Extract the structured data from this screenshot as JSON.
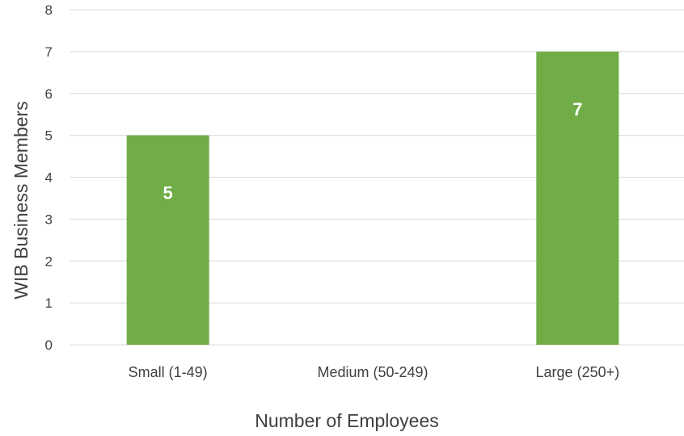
{
  "chart_data": {
    "type": "bar",
    "categories": [
      "Small (1-49)",
      "Medium (50-249)",
      "Large (250+)"
    ],
    "values": [
      5,
      0,
      7
    ],
    "data_labels": [
      "5",
      "",
      "7"
    ],
    "xlabel": "Number of Employees",
    "ylabel": "WIB Business Members",
    "ylim": [
      0,
      8
    ],
    "yticks": [
      0,
      1,
      2,
      3,
      4,
      5,
      6,
      7,
      8
    ],
    "grid": true,
    "bar_color": "#70ad47"
  }
}
